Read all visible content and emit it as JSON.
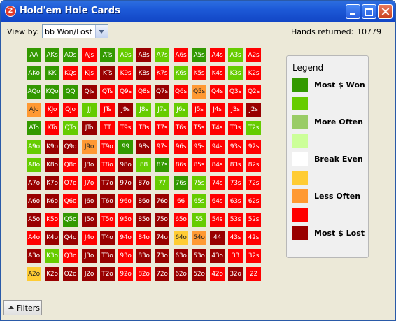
{
  "window": {
    "title": "Hold'em Hole Cards",
    "icon": "app-badge-icon",
    "icon_glyph": "2"
  },
  "toolbar": {
    "view_by_label": "View by:",
    "view_by_value": "bb Won/Lost",
    "hands_label": "Hands returned:",
    "hands_value": "10779"
  },
  "legend": {
    "title": "Legend",
    "items": [
      {
        "color": "#339900",
        "label": "Most $ Won"
      },
      {
        "color": "#66cc00",
        "label": ""
      },
      {
        "color": "#99cc66",
        "label": "More Often"
      },
      {
        "color": "#ccff99",
        "label": ""
      },
      {
        "color": "#ffffff",
        "label": "Break Even"
      },
      {
        "color": "#ffcc33",
        "label": ""
      },
      {
        "color": "#ff9933",
        "label": "Less Often"
      },
      {
        "color": "#ff0000",
        "label": ""
      },
      {
        "color": "#990000",
        "label": "Most $ Lost"
      }
    ]
  },
  "footer": {
    "filters_label": "Filters"
  },
  "palette": {
    "DG": "#339900",
    "G": "#66cc00",
    "O": "#ff9933",
    "Y": "#ffcc33",
    "R": "#ff0000",
    "DR": "#990000"
  },
  "grid": [
    [
      [
        "AA",
        "DG"
      ],
      [
        "AKs",
        "DG"
      ],
      [
        "AQs",
        "DG"
      ],
      [
        "AJs",
        "R"
      ],
      [
        "ATs",
        "DG"
      ],
      [
        "A9s",
        "G"
      ],
      [
        "A8s",
        "DR"
      ],
      [
        "A7s",
        "G"
      ],
      [
        "A6s",
        "R"
      ],
      [
        "A5s",
        "DG"
      ],
      [
        "A4s",
        "R"
      ],
      [
        "A3s",
        "G"
      ],
      [
        "A2s",
        "R"
      ]
    ],
    [
      [
        "AKo",
        "DG"
      ],
      [
        "KK",
        "DG"
      ],
      [
        "KQs",
        "R"
      ],
      [
        "KJs",
        "R"
      ],
      [
        "KTs",
        "DR"
      ],
      [
        "K9s",
        "R"
      ],
      [
        "K8s",
        "DR"
      ],
      [
        "K7s",
        "R"
      ],
      [
        "K6s",
        "G"
      ],
      [
        "K5s",
        "R"
      ],
      [
        "K4s",
        "R"
      ],
      [
        "K3s",
        "G"
      ],
      [
        "K2s",
        "R"
      ]
    ],
    [
      [
        "AQo",
        "DG"
      ],
      [
        "KQo",
        "DG"
      ],
      [
        "QQ",
        "DG"
      ],
      [
        "QJs",
        "DR"
      ],
      [
        "QTs",
        "R"
      ],
      [
        "Q9s",
        "R"
      ],
      [
        "Q8s",
        "R"
      ],
      [
        "Q7s",
        "DR"
      ],
      [
        "Q6s",
        "R"
      ],
      [
        "Q5s",
        "O"
      ],
      [
        "Q4s",
        "R"
      ],
      [
        "Q3s",
        "R"
      ],
      [
        "Q2s",
        "R"
      ]
    ],
    [
      [
        "AJo",
        "O"
      ],
      [
        "KJo",
        "R"
      ],
      [
        "QJo",
        "R"
      ],
      [
        "JJ",
        "G"
      ],
      [
        "JTs",
        "R"
      ],
      [
        "J9s",
        "DR"
      ],
      [
        "J8s",
        "G"
      ],
      [
        "J7s",
        "G"
      ],
      [
        "J6s",
        "G"
      ],
      [
        "J5s",
        "R"
      ],
      [
        "J4s",
        "R"
      ],
      [
        "J3s",
        "R"
      ],
      [
        "J2s",
        "DR"
      ]
    ],
    [
      [
        "ATo",
        "DG"
      ],
      [
        "KTo",
        "R"
      ],
      [
        "QTo",
        "G"
      ],
      [
        "JTo",
        "DR"
      ],
      [
        "TT",
        "R"
      ],
      [
        "T9s",
        "R"
      ],
      [
        "T8s",
        "R"
      ],
      [
        "T7s",
        "R"
      ],
      [
        "T6s",
        "R"
      ],
      [
        "T5s",
        "R"
      ],
      [
        "T4s",
        "R"
      ],
      [
        "T3s",
        "R"
      ],
      [
        "T2s",
        "G"
      ]
    ],
    [
      [
        "A9o",
        "G"
      ],
      [
        "K9o",
        "DR"
      ],
      [
        "Q9o",
        "DR"
      ],
      [
        "J9o",
        "O"
      ],
      [
        "T9o",
        "R"
      ],
      [
        "99",
        "DG"
      ],
      [
        "98s",
        "DR"
      ],
      [
        "97s",
        "R"
      ],
      [
        "96s",
        "R"
      ],
      [
        "95s",
        "R"
      ],
      [
        "94s",
        "R"
      ],
      [
        "93s",
        "R"
      ],
      [
        "92s",
        "R"
      ]
    ],
    [
      [
        "A8o",
        "G"
      ],
      [
        "K8o",
        "DR"
      ],
      [
        "Q8o",
        "R"
      ],
      [
        "J8o",
        "DR"
      ],
      [
        "T8o",
        "R"
      ],
      [
        "98o",
        "DR"
      ],
      [
        "88",
        "G"
      ],
      [
        "87s",
        "DG"
      ],
      [
        "86s",
        "R"
      ],
      [
        "85s",
        "R"
      ],
      [
        "84s",
        "R"
      ],
      [
        "83s",
        "R"
      ],
      [
        "82s",
        "R"
      ]
    ],
    [
      [
        "A7o",
        "DR"
      ],
      [
        "K7o",
        "DR"
      ],
      [
        "Q7o",
        "R"
      ],
      [
        "J7o",
        "R"
      ],
      [
        "T7o",
        "DR"
      ],
      [
        "97o",
        "DR"
      ],
      [
        "87o",
        "DR"
      ],
      [
        "77",
        "G"
      ],
      [
        "76s",
        "DG"
      ],
      [
        "75s",
        "G"
      ],
      [
        "74s",
        "R"
      ],
      [
        "73s",
        "R"
      ],
      [
        "72s",
        "R"
      ]
    ],
    [
      [
        "A6o",
        "DR"
      ],
      [
        "K6o",
        "DR"
      ],
      [
        "Q6o",
        "R"
      ],
      [
        "J6o",
        "DR"
      ],
      [
        "T6o",
        "DR"
      ],
      [
        "96o",
        "R"
      ],
      [
        "86o",
        "DR"
      ],
      [
        "76o",
        "DR"
      ],
      [
        "66",
        "R"
      ],
      [
        "65s",
        "G"
      ],
      [
        "64s",
        "R"
      ],
      [
        "63s",
        "R"
      ],
      [
        "62s",
        "R"
      ]
    ],
    [
      [
        "A5o",
        "DR"
      ],
      [
        "K5o",
        "R"
      ],
      [
        "Q5o",
        "DG"
      ],
      [
        "J5o",
        "DR"
      ],
      [
        "T5o",
        "R"
      ],
      [
        "95o",
        "R"
      ],
      [
        "85o",
        "DR"
      ],
      [
        "75o",
        "DR"
      ],
      [
        "65o",
        "R"
      ],
      [
        "55",
        "G"
      ],
      [
        "54s",
        "R"
      ],
      [
        "53s",
        "R"
      ],
      [
        "52s",
        "R"
      ]
    ],
    [
      [
        "A4o",
        "R"
      ],
      [
        "K4o",
        "DR"
      ],
      [
        "Q4o",
        "DR"
      ],
      [
        "J4o",
        "R"
      ],
      [
        "T4o",
        "DR"
      ],
      [
        "94o",
        "R"
      ],
      [
        "84o",
        "R"
      ],
      [
        "74o",
        "DR"
      ],
      [
        "64o",
        "Y"
      ],
      [
        "54o",
        "O"
      ],
      [
        "44",
        "DR"
      ],
      [
        "43s",
        "R"
      ],
      [
        "42s",
        "R"
      ]
    ],
    [
      [
        "A3o",
        "DR"
      ],
      [
        "K3o",
        "G"
      ],
      [
        "Q3o",
        "R"
      ],
      [
        "J3o",
        "DR"
      ],
      [
        "T3o",
        "DR"
      ],
      [
        "93o",
        "R"
      ],
      [
        "83o",
        "DR"
      ],
      [
        "73o",
        "DR"
      ],
      [
        "63o",
        "DR"
      ],
      [
        "53o",
        "DR"
      ],
      [
        "43o",
        "DR"
      ],
      [
        "33",
        "R"
      ],
      [
        "32s",
        "R"
      ]
    ],
    [
      [
        "A2o",
        "Y"
      ],
      [
        "K2o",
        "DR"
      ],
      [
        "Q2o",
        "DR"
      ],
      [
        "J2o",
        "DR"
      ],
      [
        "T2o",
        "DR"
      ],
      [
        "92o",
        "R"
      ],
      [
        "82o",
        "R"
      ],
      [
        "72o",
        "DR"
      ],
      [
        "62o",
        "DR"
      ],
      [
        "52o",
        "DR"
      ],
      [
        "42o",
        "R"
      ],
      [
        "32o",
        "DR"
      ],
      [
        "22",
        "R"
      ]
    ]
  ]
}
